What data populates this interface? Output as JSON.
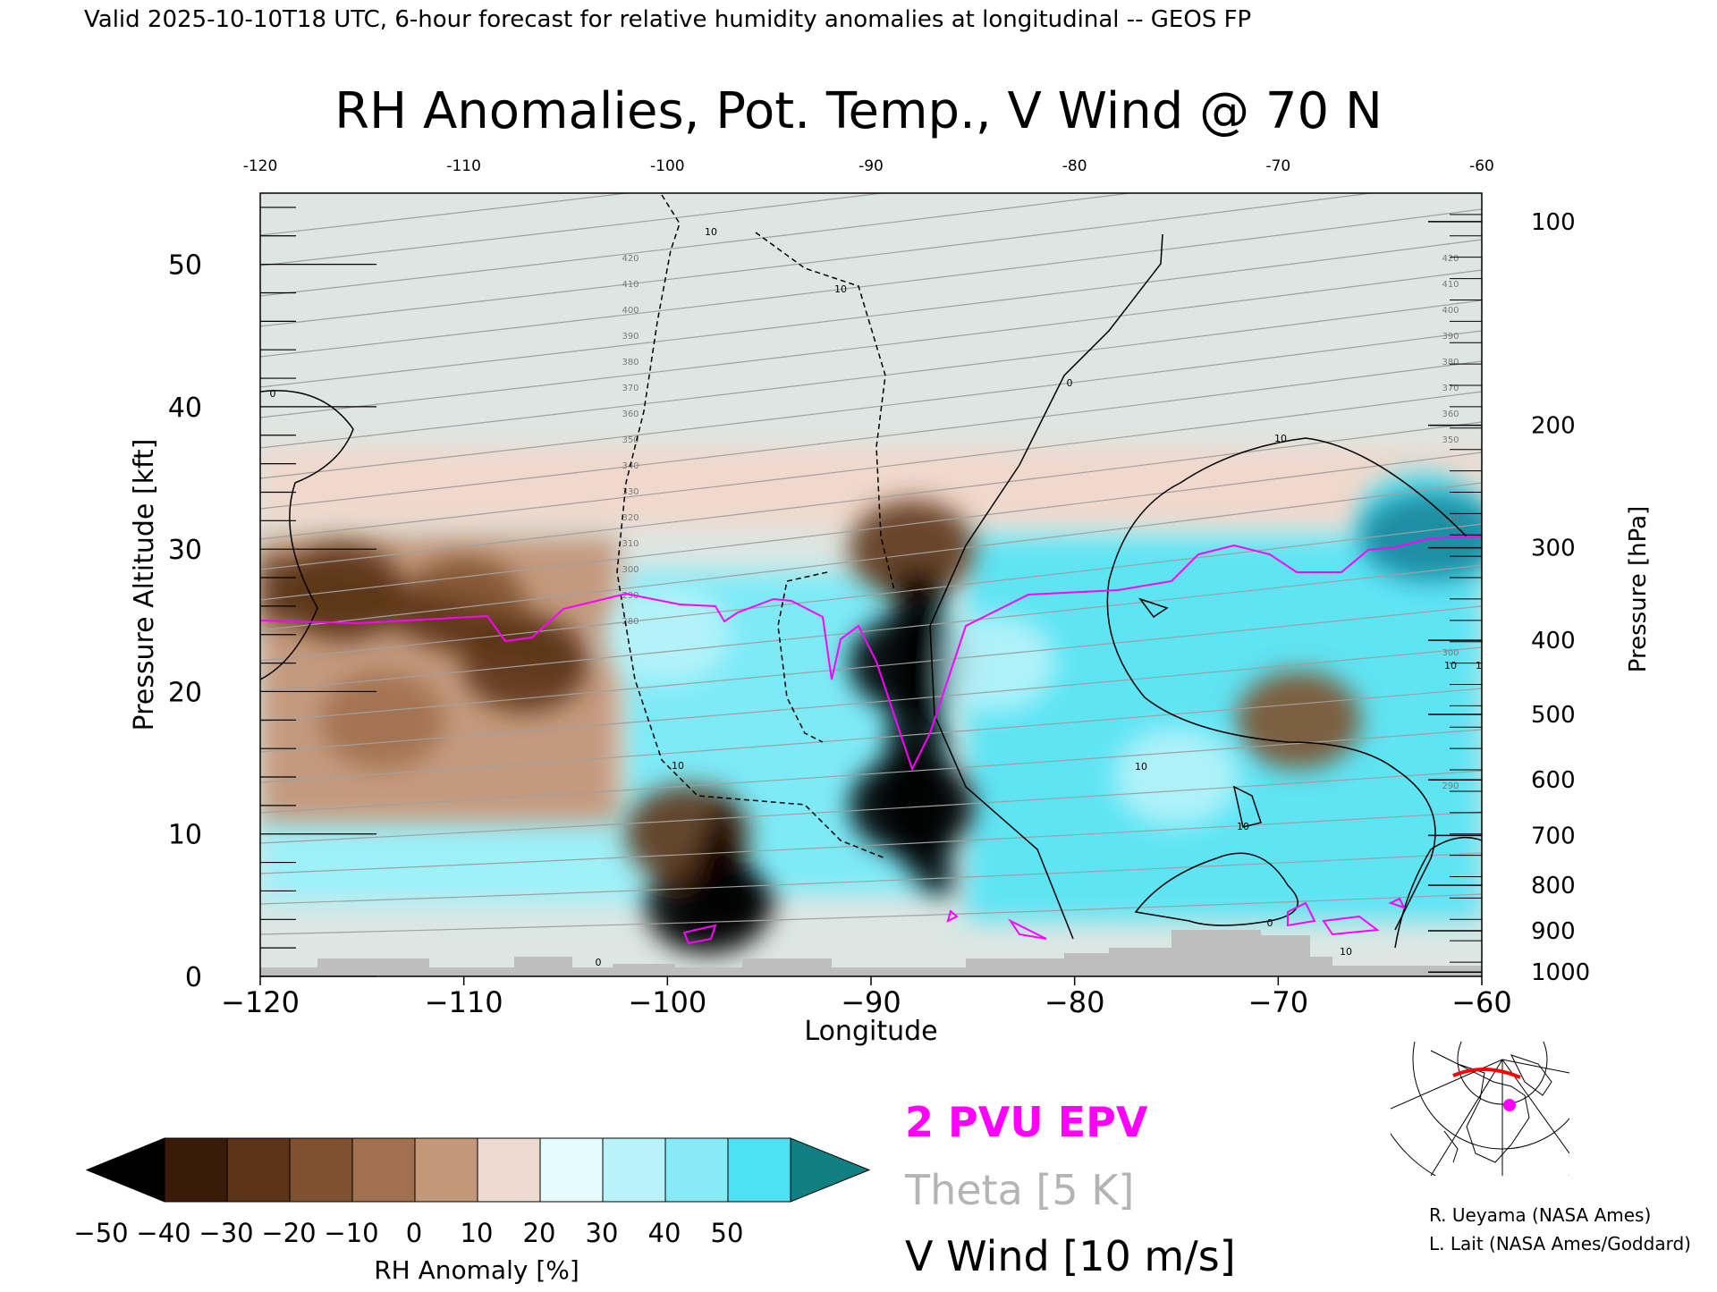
{
  "header": {
    "valid_line": "Valid 2025-10-10T18 UTC, 6-hour forecast for relative humidity anomalies at longitudinal -- GEOS FP",
    "title": "RH Anomalies, Pot. Temp., V Wind @ 70 N"
  },
  "chart_data": {
    "type": "heatmap",
    "title": "RH Anomalies, Pot. Temp., V Wind @ 70 N",
    "xlabel": "Longitude",
    "ylabel_left": "Pressure Altitude [kft]",
    "ylabel_right": "Pressure [hPa]",
    "xlim": [
      -120,
      -60
    ],
    "ylim_kft": [
      0,
      55
    ],
    "x_ticks_bottom": [
      "−120",
      "−110",
      "−100",
      "−90",
      "−80",
      "−70",
      "−60"
    ],
    "x_ticks_top": [
      "-120",
      "-110",
      "-100",
      "-90",
      "-80",
      "-70",
      "-60"
    ],
    "y_ticks_left": [
      "0",
      "10",
      "20",
      "30",
      "40",
      "50"
    ],
    "y_ticks_right": [
      {
        "label": "100",
        "kft": 53.0
      },
      {
        "label": "200",
        "kft": 38.7
      },
      {
        "label": "300",
        "kft": 30.1
      },
      {
        "label": "400",
        "kft": 23.6
      },
      {
        "label": "500",
        "kft": 18.4
      },
      {
        "label": "600",
        "kft": 13.8
      },
      {
        "label": "700",
        "kft": 9.9
      },
      {
        "label": "800",
        "kft": 6.4
      },
      {
        "label": "900",
        "kft": 3.2
      },
      {
        "label": "1000",
        "kft": 0.3
      }
    ],
    "colorbar": {
      "label": "RH Anomaly [%]",
      "tick_labels": [
        "−50",
        "−40",
        "−30",
        "−20",
        "−10",
        "0",
        "10",
        "20",
        "30",
        "40",
        "50"
      ],
      "colors": [
        "#000000",
        "#3a1a08",
        "#5c3418",
        "#80512f",
        "#a1704e",
        "#c4977b",
        "#eedad0",
        "#e6fbfe",
        "#b8f3fa",
        "#86eaf7",
        "#4de1f4",
        "#13c5e3",
        "#0f7f96"
      ],
      "under_color": "#000000",
      "over_color": "#107f82"
    },
    "theta_labels_left": [
      "420",
      "410",
      "400",
      "390",
      "380",
      "370",
      "360",
      "350",
      "340",
      "330",
      "320",
      "310",
      "300",
      "290",
      "280"
    ],
    "theta_labels_right": [
      "420",
      "410",
      "400",
      "390",
      "380",
      "370",
      "360",
      "350",
      "310",
      "300",
      "290"
    ],
    "wind_labels": [
      "10",
      "10",
      "10",
      "0",
      "0",
      "10",
      "10",
      "10",
      "10",
      "0",
      "0",
      "10",
      "10"
    ],
    "rh_patches": [
      {
        "lon": -116,
        "kft": 27,
        "rh": -35
      },
      {
        "lon": -110,
        "kft": 26,
        "rh": -30
      },
      {
        "lon": -107,
        "kft": 22,
        "rh": -35
      },
      {
        "lon": -114,
        "kft": 18,
        "rh": -15
      },
      {
        "lon": -98,
        "kft": 5,
        "rh": -55
      },
      {
        "lon": -99,
        "kft": 10,
        "rh": -40
      },
      {
        "lon": -88,
        "kft": 30,
        "rh": -40
      },
      {
        "lon": -88,
        "kft": 22,
        "rh": -55
      },
      {
        "lon": -88,
        "kft": 12,
        "rh": -55
      },
      {
        "lon": -69,
        "kft": 18,
        "rh": -25
      },
      {
        "lon": -84,
        "kft": 22,
        "rh": 25
      },
      {
        "lon": -75,
        "kft": 14,
        "rh": 25
      },
      {
        "lon": -63,
        "kft": 32,
        "rh": 45
      },
      {
        "lon": -100,
        "kft": 24,
        "rh": 20
      }
    ]
  },
  "legend": {
    "epv_label": "2 PVU EPV",
    "theta_label": "Theta [5 K]",
    "wind_label": "V Wind [10 m/s]",
    "epv_color": "#ff00ff",
    "theta_color": "#b4b4b4",
    "wind_color": "#000000"
  },
  "credits": {
    "line1": "R. Ueyama (NASA Ames)",
    "line2": "L. Lait (NASA Ames/Goddard)"
  },
  "inset_map": {
    "marker_color": "#ff00ff",
    "track_color": "#ff0000"
  }
}
